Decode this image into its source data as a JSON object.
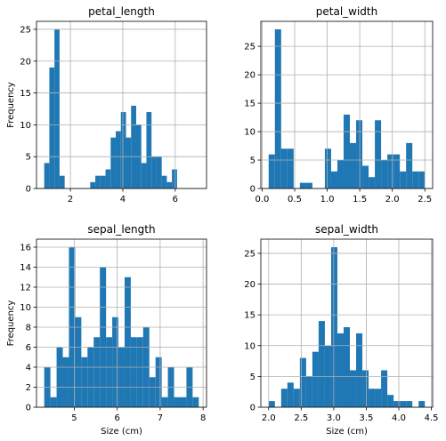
{
  "figure": {
    "bar_color": "#1f77b4",
    "grid_color": "#b0b0b0"
  },
  "chart_data": [
    {
      "type": "bar",
      "title": "petal_length",
      "xlabel": "",
      "ylabel": "Frequency",
      "grid": true,
      "xlim": [
        0.705,
        7.195
      ],
      "ylim": [
        0,
        26.25
      ],
      "xticks": [
        2,
        4,
        6
      ],
      "yticks": [
        0,
        5,
        10,
        15,
        20,
        25
      ],
      "bin_start": 1.0,
      "bin_width": 0.195,
      "values": [
        4,
        19,
        25,
        2,
        0,
        0,
        0,
        0,
        0,
        1,
        2,
        2,
        3,
        8,
        9,
        12,
        8,
        13,
        10,
        4,
        12,
        5,
        5,
        2,
        1,
        3
      ]
    },
    {
      "type": "bar",
      "title": "petal_width",
      "xlabel": "",
      "ylabel": "",
      "grid": true,
      "xlim": [
        -0.02,
        2.62
      ],
      "ylim": [
        0,
        29.4
      ],
      "xticks": [
        0.0,
        0.5,
        1.0,
        1.5,
        2.0,
        2.5
      ],
      "yticks": [
        0,
        5,
        10,
        15,
        20,
        25
      ],
      "bin_start": 0.1,
      "bin_width": 0.096,
      "values": [
        6,
        28,
        7,
        7,
        0,
        1,
        1,
        0,
        0,
        7,
        3,
        5,
        13,
        8,
        12,
        4,
        2,
        12,
        5,
        6,
        6,
        3,
        8,
        3,
        3
      ]
    },
    {
      "type": "bar",
      "title": "sepal_length",
      "xlabel": "Size (cm)",
      "ylabel": "Frequency",
      "grid": true,
      "xlim": [
        4.12,
        8.08
      ],
      "ylim": [
        0,
        16.8
      ],
      "xticks": [
        5,
        6,
        7,
        8
      ],
      "yticks": [
        0,
        2,
        4,
        6,
        8,
        10,
        12,
        14,
        16
      ],
      "bin_start": 4.3,
      "bin_width": 0.144,
      "values": [
        4,
        1,
        6,
        5,
        16,
        9,
        5,
        6,
        7,
        14,
        7,
        9,
        6,
        13,
        7,
        7,
        8,
        3,
        5,
        1,
        4,
        1,
        1,
        4,
        1
      ]
    },
    {
      "type": "bar",
      "title": "sepal_width",
      "xlabel": "Size (cm)",
      "ylabel": "",
      "grid": true,
      "xlim": [
        1.88,
        4.52
      ],
      "ylim": [
        0,
        27.3
      ],
      "xticks": [
        2.0,
        2.5,
        3.0,
        3.5,
        4.0,
        4.5
      ],
      "yticks": [
        0,
        5,
        10,
        15,
        20,
        25
      ],
      "bin_start": 2.0,
      "bin_width": 0.096,
      "values": [
        1,
        0,
        3,
        4,
        3,
        8,
        5,
        9,
        14,
        10,
        26,
        12,
        13,
        6,
        12,
        6,
        3,
        3,
        6,
        2,
        1,
        1,
        1,
        0,
        1
      ]
    }
  ]
}
